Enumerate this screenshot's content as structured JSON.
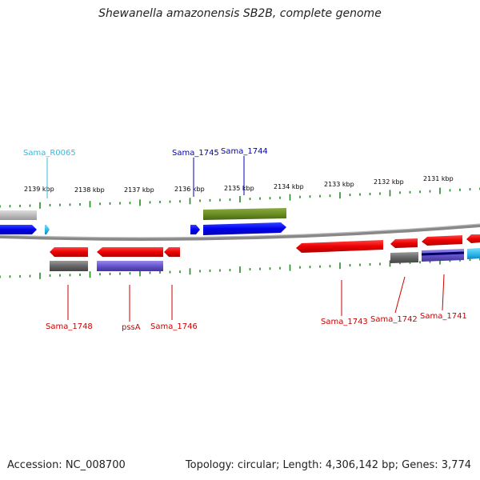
{
  "title": "Shewanella amazonensis SB2B, complete genome",
  "footer": {
    "accession": "Accession: NC_008700",
    "summary": "Topology: circular; Length: 4,306,142 bp; Genes: 3,774"
  },
  "ticks": [
    "2139 kbp",
    "2138 kbp",
    "2137 kbp",
    "2136 kbp",
    "2135 kbp",
    "2134 kbp",
    "2133 kbp",
    "2132 kbp",
    "2131 kbp"
  ],
  "gene_labels_top": [
    {
      "label": "Sama_R0065",
      "color": "#33bbdd"
    },
    {
      "label": "Sama_1745",
      "color": "#0000bb"
    },
    {
      "label": "Sama_1744",
      "color": "#0000bb"
    }
  ],
  "gene_labels_bottom": [
    {
      "label": "Sama_1748",
      "color": "#cc0000"
    },
    {
      "label": "pssA",
      "color": "#cc0000"
    },
    {
      "label": "Sama_1746",
      "color": "#cc0000"
    },
    {
      "label": "Sama_1743",
      "color": "#cc0000"
    },
    {
      "label": "Sama_1742",
      "color": "#cc0000"
    },
    {
      "label": "Sama_1741",
      "color": "#cc0000"
    }
  ],
  "colors": {
    "forward_gene": "#0000ff",
    "reverse_gene": "#ee1111",
    "rna": "#33ccee",
    "cog_gray": "#777777",
    "cog_purple": "#7766cc",
    "cog_olive": "#6b8e23",
    "cog_lightgray": "#bbbbbb",
    "tick": "#228822",
    "backbone": "#888888"
  }
}
